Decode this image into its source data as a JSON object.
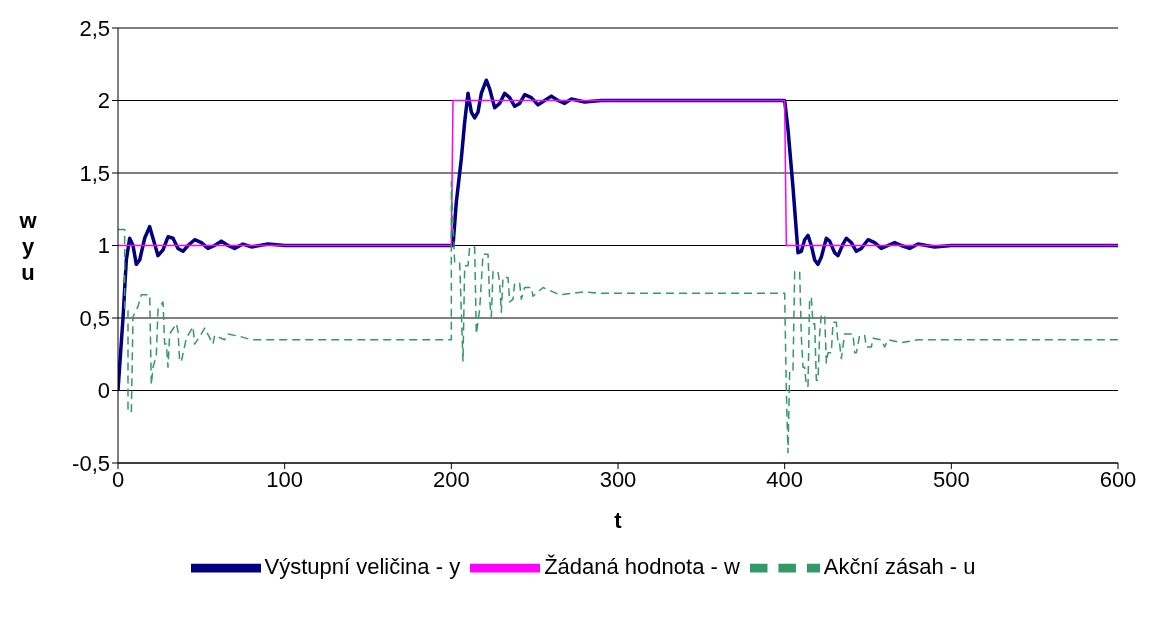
{
  "chart_data": {
    "type": "line",
    "xlabel": "t",
    "ylabel": "w\ny\nu",
    "xlim": [
      0,
      600
    ],
    "xticks": [
      0,
      100,
      200,
      300,
      400,
      500,
      600
    ],
    "ylim": [
      -0.5,
      2.5
    ],
    "yticks": [
      {
        "value": -0.5,
        "label": "-0,5"
      },
      0,
      {
        "value": 0.5,
        "label": "0,5"
      },
      1,
      {
        "value": 1.5,
        "label": "1,5"
      },
      2,
      {
        "value": 2.5,
        "label": "2,5"
      }
    ],
    "grid": "y",
    "legend": "bottom",
    "marker": "none",
    "series": [
      {
        "name": "Výstupní veličina - y",
        "color": "#000080",
        "line_style": "solid",
        "x": [
          0,
          3,
          5,
          7,
          9,
          11,
          13,
          16,
          19,
          21,
          24,
          27,
          30,
          33,
          36,
          39,
          42,
          46,
          50,
          54,
          58,
          62,
          66,
          70,
          75,
          80,
          90,
          100,
          200,
          201,
          203,
          206,
          208,
          210,
          212,
          214,
          216,
          218,
          221,
          223,
          226,
          229,
          232,
          235,
          238,
          241,
          244,
          248,
          252,
          256,
          260,
          264,
          268,
          272,
          280,
          290,
          400,
          402,
          405,
          407,
          408,
          410,
          412,
          414,
          416,
          418,
          420,
          422,
          425,
          427,
          430,
          432,
          435,
          437,
          440,
          443,
          446,
          450,
          454,
          458,
          462,
          466,
          470,
          475,
          480,
          490,
          500,
          600
        ],
        "values": [
          0,
          0.5,
          0.9,
          1.05,
          1.0,
          0.87,
          0.9,
          1.05,
          1.13,
          1.05,
          0.93,
          0.97,
          1.06,
          1.05,
          0.98,
          0.96,
          1.0,
          1.04,
          1.02,
          0.98,
          1.0,
          1.03,
          1.0,
          0.98,
          1.01,
          0.99,
          1.01,
          1.0,
          1.0,
          1.0,
          1.3,
          1.6,
          1.85,
          2.05,
          1.92,
          1.88,
          1.92,
          2.05,
          2.14,
          2.08,
          1.95,
          1.98,
          2.05,
          2.02,
          1.96,
          1.98,
          2.04,
          2.02,
          1.97,
          2.0,
          2.03,
          2.0,
          1.98,
          2.01,
          1.99,
          2.0,
          2.0,
          1.8,
          1.4,
          1.1,
          0.95,
          0.96,
          1.04,
          1.07,
          1.0,
          0.9,
          0.87,
          0.92,
          1.05,
          1.03,
          0.95,
          0.93,
          1.01,
          1.05,
          1.02,
          0.96,
          0.98,
          1.04,
          1.02,
          0.98,
          1.0,
          1.02,
          1.0,
          0.98,
          1.01,
          0.99,
          1.0,
          1.0
        ]
      },
      {
        "name": "Žádaná hodnota - w",
        "color": "#ff00ff",
        "line_style": "solid",
        "x": [
          0,
          200,
          201,
          400,
          401,
          600
        ],
        "values": [
          1,
          1,
          2,
          2,
          1,
          1
        ]
      },
      {
        "name": "Akční zásah - u",
        "color": "#339966",
        "line_style": "dashed",
        "x": [
          0,
          4,
          4,
          6,
          6,
          8,
          9,
          10,
          12,
          14,
          19,
          20,
          21,
          23,
          24,
          27,
          28,
          29,
          30,
          31,
          35,
          36,
          37,
          38,
          41,
          45,
          46,
          50,
          52,
          57,
          58,
          64,
          66,
          74,
          80,
          200,
          200,
          201,
          202,
          205,
          207,
          208,
          210,
          211,
          214,
          215,
          217,
          219,
          222,
          223,
          224,
          225,
          228,
          229,
          230,
          231,
          234,
          235,
          237,
          238,
          241,
          242,
          244,
          248,
          249,
          255,
          265,
          280,
          290,
          400,
          401,
          402,
          403,
          405,
          406,
          409,
          410,
          411,
          412,
          413,
          414,
          415,
          416,
          417,
          418,
          419,
          420,
          421,
          422,
          424,
          425,
          426,
          428,
          429,
          431,
          432,
          433,
          434,
          436,
          441,
          442,
          443,
          445,
          448,
          449,
          452,
          453,
          458,
          460,
          462,
          470,
          480,
          600
        ],
        "values": [
          1.11,
          1.11,
          0.55,
          0.55,
          -0.14,
          -0.15,
          0.51,
          0.53,
          0.58,
          0.66,
          0.66,
          0.04,
          0.16,
          0.24,
          0.56,
          0.61,
          0.32,
          0.32,
          0.16,
          0.39,
          0.46,
          0.41,
          0.2,
          0.2,
          0.36,
          0.44,
          0.32,
          0.39,
          0.43,
          0.32,
          0.38,
          0.35,
          0.39,
          0.37,
          0.35,
          0.35,
          1.44,
          1.16,
          0.88,
          0.88,
          0.2,
          0.86,
          0.86,
          0.99,
          0.99,
          0.39,
          0.56,
          0.94,
          0.94,
          0.62,
          0.51,
          0.82,
          0.82,
          0.74,
          0.54,
          0.78,
          0.78,
          0.61,
          0.63,
          0.74,
          0.74,
          0.63,
          0.71,
          0.71,
          0.65,
          0.71,
          0.66,
          0.68,
          0.67,
          0.67,
          0.0,
          -0.43,
          0.14,
          0.14,
          0.82,
          0.82,
          0.37,
          0.16,
          0.16,
          0.03,
          0.03,
          0.64,
          0.64,
          0.46,
          0.46,
          0.07,
          0.07,
          0.39,
          0.52,
          0.52,
          0.19,
          0.26,
          0.26,
          0.47,
          0.47,
          0.32,
          0.32,
          0.22,
          0.39,
          0.39,
          0.26,
          0.26,
          0.38,
          0.38,
          0.3,
          0.3,
          0.36,
          0.35,
          0.3,
          0.35,
          0.33,
          0.35,
          0.35
        ]
      }
    ]
  }
}
